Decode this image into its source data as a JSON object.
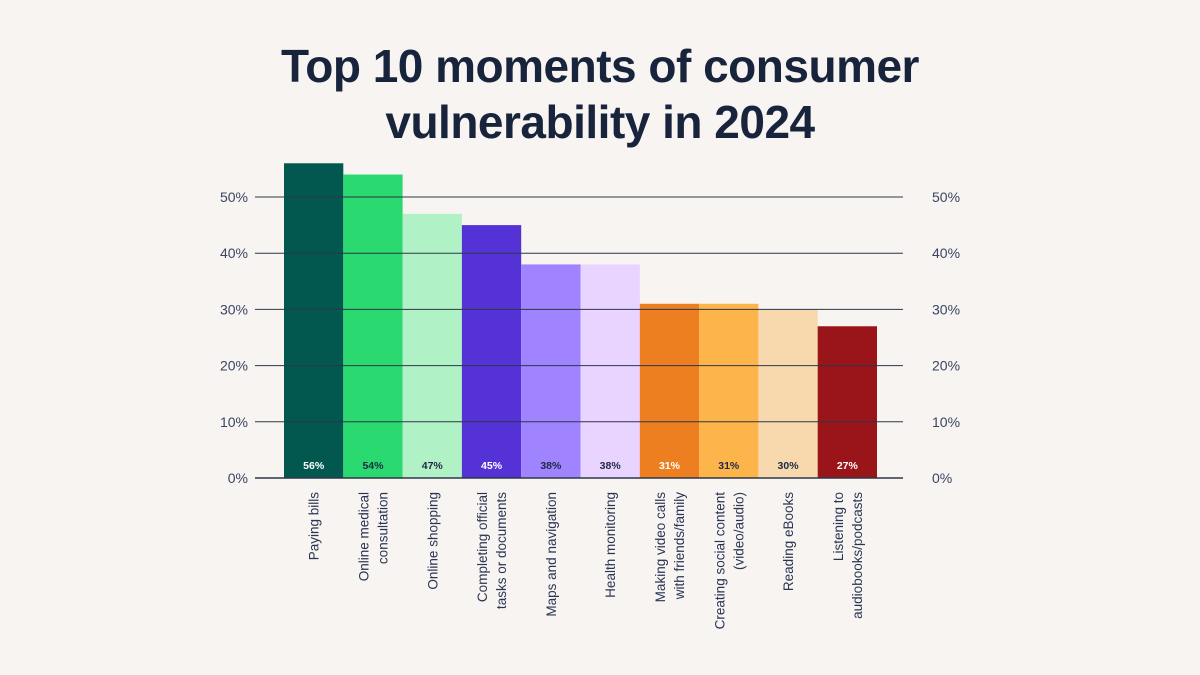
{
  "title_lines": [
    "Top 10 moments of consumer",
    "vulnerability in 2024"
  ],
  "chart_data": {
    "type": "bar",
    "title": "Top 10 moments of consumer vulnerability in 2024",
    "categories": [
      [
        "Paying bills"
      ],
      [
        "Online medical",
        "consultation"
      ],
      [
        "Online shopping"
      ],
      [
        "Completing official",
        "tasks or documents"
      ],
      [
        "Maps and navigation"
      ],
      [
        "Health monitoring"
      ],
      [
        "Making video calls",
        "with friends/family"
      ],
      [
        "Creating social content",
        "(video/audio)"
      ],
      [
        "Reading eBooks"
      ],
      [
        "Listening to",
        "audiobooks/podcasts"
      ]
    ],
    "values": [
      56,
      54,
      47,
      45,
      38,
      38,
      31,
      31,
      30,
      27
    ],
    "value_labels": [
      "56%",
      "54%",
      "47%",
      "45%",
      "38%",
      "38%",
      "31%",
      "31%",
      "30%",
      "27%"
    ],
    "colors": [
      "#02574e",
      "#2ad970",
      "#b1f1c6",
      "#5432d6",
      "#a083ff",
      "#e9d3ff",
      "#ee7f20",
      "#fdb44b",
      "#f8d9ad",
      "#99151a"
    ],
    "label_colors": [
      "#ffffff",
      "#1d2a44",
      "#1d2a44",
      "#ffffff",
      "#1d2a44",
      "#1d2a44",
      "#ffffff",
      "#1d2a44",
      "#1d2a44",
      "#ffffff"
    ],
    "yticks": [
      0,
      10,
      20,
      30,
      40,
      50
    ],
    "ytick_labels": [
      "0%",
      "10%",
      "20%",
      "30%",
      "40%",
      "50%"
    ],
    "ylim": [
      0,
      56
    ],
    "grid": true,
    "axis_color": "#2d3748"
  }
}
